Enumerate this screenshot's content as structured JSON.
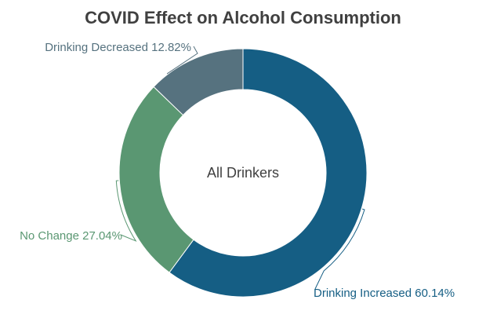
{
  "chart_data": {
    "type": "pie",
    "variant": "donut",
    "title": "COVID Effect on Alcohol Consumption",
    "center_label": "All Drinkers",
    "slices": [
      {
        "label": "Drinking Increased",
        "value": 60.14,
        "display": "Drinking Increased 60.14%",
        "color": "#155E84"
      },
      {
        "label": "No Change",
        "value": 27.04,
        "display": "No Change 27.04%",
        "color": "#5A9772"
      },
      {
        "label": "Drinking Decreased",
        "value": 12.82,
        "display": "Drinking Decreased 12.82%",
        "color": "#56727F"
      }
    ]
  }
}
